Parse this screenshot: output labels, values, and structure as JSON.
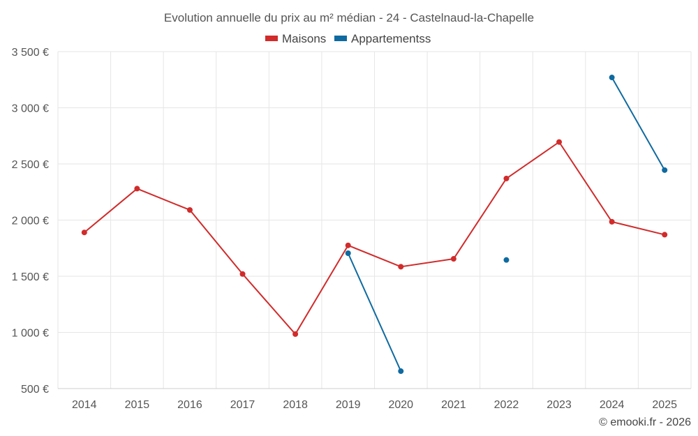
{
  "chart_data": {
    "type": "line",
    "title": "Evolution annuelle du prix au m² médian - 24 - Castelnaud-la-Chapelle",
    "categories": [
      "2014",
      "2015",
      "2016",
      "2017",
      "2018",
      "2019",
      "2020",
      "2021",
      "2022",
      "2023",
      "2024",
      "2025"
    ],
    "ylim": [
      500,
      3500
    ],
    "yticks": [
      500,
      1000,
      1500,
      2000,
      2500,
      3000,
      3500
    ],
    "ytick_labels": [
      "500 €",
      "1 000 €",
      "1 500 €",
      "2 000 €",
      "2 500 €",
      "3 000 €",
      "3 500 €"
    ],
    "grid": true,
    "legend_position": "top-center",
    "series": [
      {
        "name": "Maisons",
        "color": "#d12b2b",
        "values": [
          1890,
          2280,
          2090,
          1520,
          985,
          1775,
          1585,
          1655,
          2370,
          2695,
          1985,
          1870
        ]
      },
      {
        "name": "Appartementss",
        "color": "#0e6aa0",
        "values": [
          null,
          null,
          null,
          null,
          null,
          1705,
          655,
          null,
          1645,
          null,
          3270,
          2445
        ]
      }
    ],
    "credit": "© emooki.fr - 2026"
  }
}
